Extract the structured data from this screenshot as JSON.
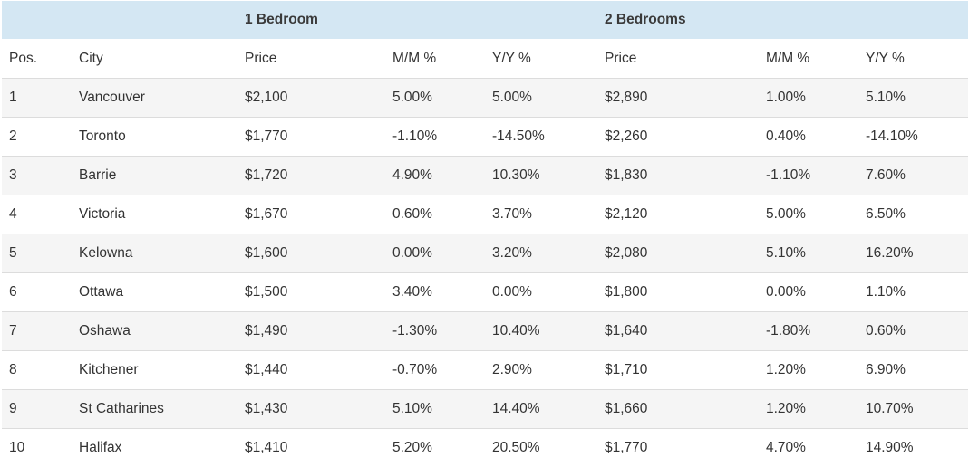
{
  "groups": {
    "one_bedroom": "1 Bedroom",
    "two_bedrooms": "2 Bedrooms"
  },
  "columns": [
    "Pos.",
    "City",
    "Price",
    "M/M %",
    "Y/Y %",
    "Price",
    "M/M %",
    "Y/Y %"
  ],
  "rows": [
    [
      "1",
      "Vancouver",
      "$2,100",
      "5.00%",
      "5.00%",
      "$2,890",
      "1.00%",
      "5.10%"
    ],
    [
      "2",
      "Toronto",
      "$1,770",
      "-1.10%",
      "-14.50%",
      "$2,260",
      "0.40%",
      "-14.10%"
    ],
    [
      "3",
      "Barrie",
      "$1,720",
      "4.90%",
      "10.30%",
      "$1,830",
      "-1.10%",
      "7.60%"
    ],
    [
      "4",
      "Victoria",
      "$1,670",
      "0.60%",
      "3.70%",
      "$2,120",
      "5.00%",
      "6.50%"
    ],
    [
      "5",
      "Kelowna",
      "$1,600",
      "0.00%",
      "3.20%",
      "$2,080",
      "5.10%",
      "16.20%"
    ],
    [
      "6",
      "Ottawa",
      "$1,500",
      "3.40%",
      "0.00%",
      "$1,800",
      "0.00%",
      "1.10%"
    ],
    [
      "7",
      "Oshawa",
      "$1,490",
      "-1.30%",
      "10.40%",
      "$1,640",
      "-1.80%",
      "0.60%"
    ],
    [
      "8",
      "Kitchener",
      "$1,440",
      "-0.70%",
      "2.90%",
      "$1,710",
      "1.20%",
      "6.90%"
    ],
    [
      "9",
      "St Catharines",
      "$1,430",
      "5.10%",
      "14.40%",
      "$1,660",
      "1.20%",
      "10.70%"
    ],
    [
      "10",
      "Halifax",
      "$1,410",
      "5.20%",
      "20.50%",
      "$1,770",
      "4.70%",
      "14.90%"
    ]
  ],
  "colors": {
    "header_background": "#d4e7f3",
    "row_stripe": "#f5f5f5",
    "row_border": "#dcdcdc"
  }
}
